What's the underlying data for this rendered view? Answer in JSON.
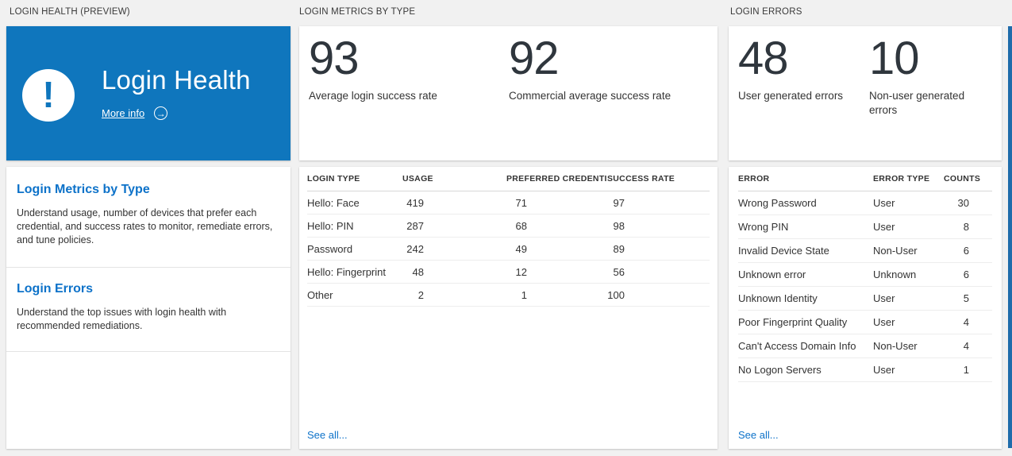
{
  "colors": {
    "tile_blue": "#0f76bd",
    "link_blue": "#0d72c9",
    "edge_strip_blue": "#1f6cab",
    "background_gray": "#f1f1f1",
    "stat_number": "#2f363d"
  },
  "login_health": {
    "header": "LOGIN HEALTH (PREVIEW)",
    "tile": {
      "title": "Login Health",
      "more_info_label": "More info",
      "alert_glyph": "!",
      "arrow_glyph": "→"
    },
    "sections": [
      {
        "title": "Login Metrics by Type",
        "description": "Understand usage, number of devices that prefer each credential, and success rates to monitor, remediate errors, and tune policies."
      },
      {
        "title": "Login Errors",
        "description": "Understand the top issues with login health with recommended remediations."
      }
    ]
  },
  "login_metrics": {
    "header": "LOGIN METRICS BY TYPE",
    "stats": [
      {
        "value": "93",
        "label": "Average login success rate"
      },
      {
        "value": "92",
        "label": "Commercial average success rate"
      }
    ],
    "table": {
      "columns": [
        "LOGIN TYPE",
        "USAGE",
        "PREFERRED CREDENTIAL",
        "SUCCESS RATE"
      ],
      "rows": [
        [
          "Hello: Face",
          "419",
          "71",
          "97"
        ],
        [
          "Hello: PIN",
          "287",
          "68",
          "98"
        ],
        [
          "Password",
          "242",
          "49",
          "89"
        ],
        [
          "Hello: Fingerprint",
          "48",
          "12",
          "56"
        ],
        [
          "Other",
          "2",
          "1",
          "100"
        ]
      ]
    },
    "see_all_label": "See all..."
  },
  "login_errors": {
    "header": "LOGIN ERRORS",
    "stats": [
      {
        "value": "48",
        "label": "User generated errors"
      },
      {
        "value": "10",
        "label": "Non-user generated errors"
      }
    ],
    "table": {
      "columns": [
        "ERROR",
        "ERROR TYPE",
        "COUNTS"
      ],
      "rows": [
        [
          "Wrong Password",
          "User",
          "30"
        ],
        [
          "Wrong PIN",
          "User",
          "8"
        ],
        [
          "Invalid Device State",
          "Non-User",
          "6"
        ],
        [
          "Unknown error",
          "Unknown",
          "6"
        ],
        [
          "Unknown Identity",
          "User",
          "5"
        ],
        [
          "Poor Fingerprint Quality",
          "User",
          "4"
        ],
        [
          "Can't Access Domain Info",
          "Non-User",
          "4"
        ],
        [
          "No Logon Servers",
          "User",
          "1"
        ]
      ]
    },
    "see_all_label": "See all..."
  }
}
